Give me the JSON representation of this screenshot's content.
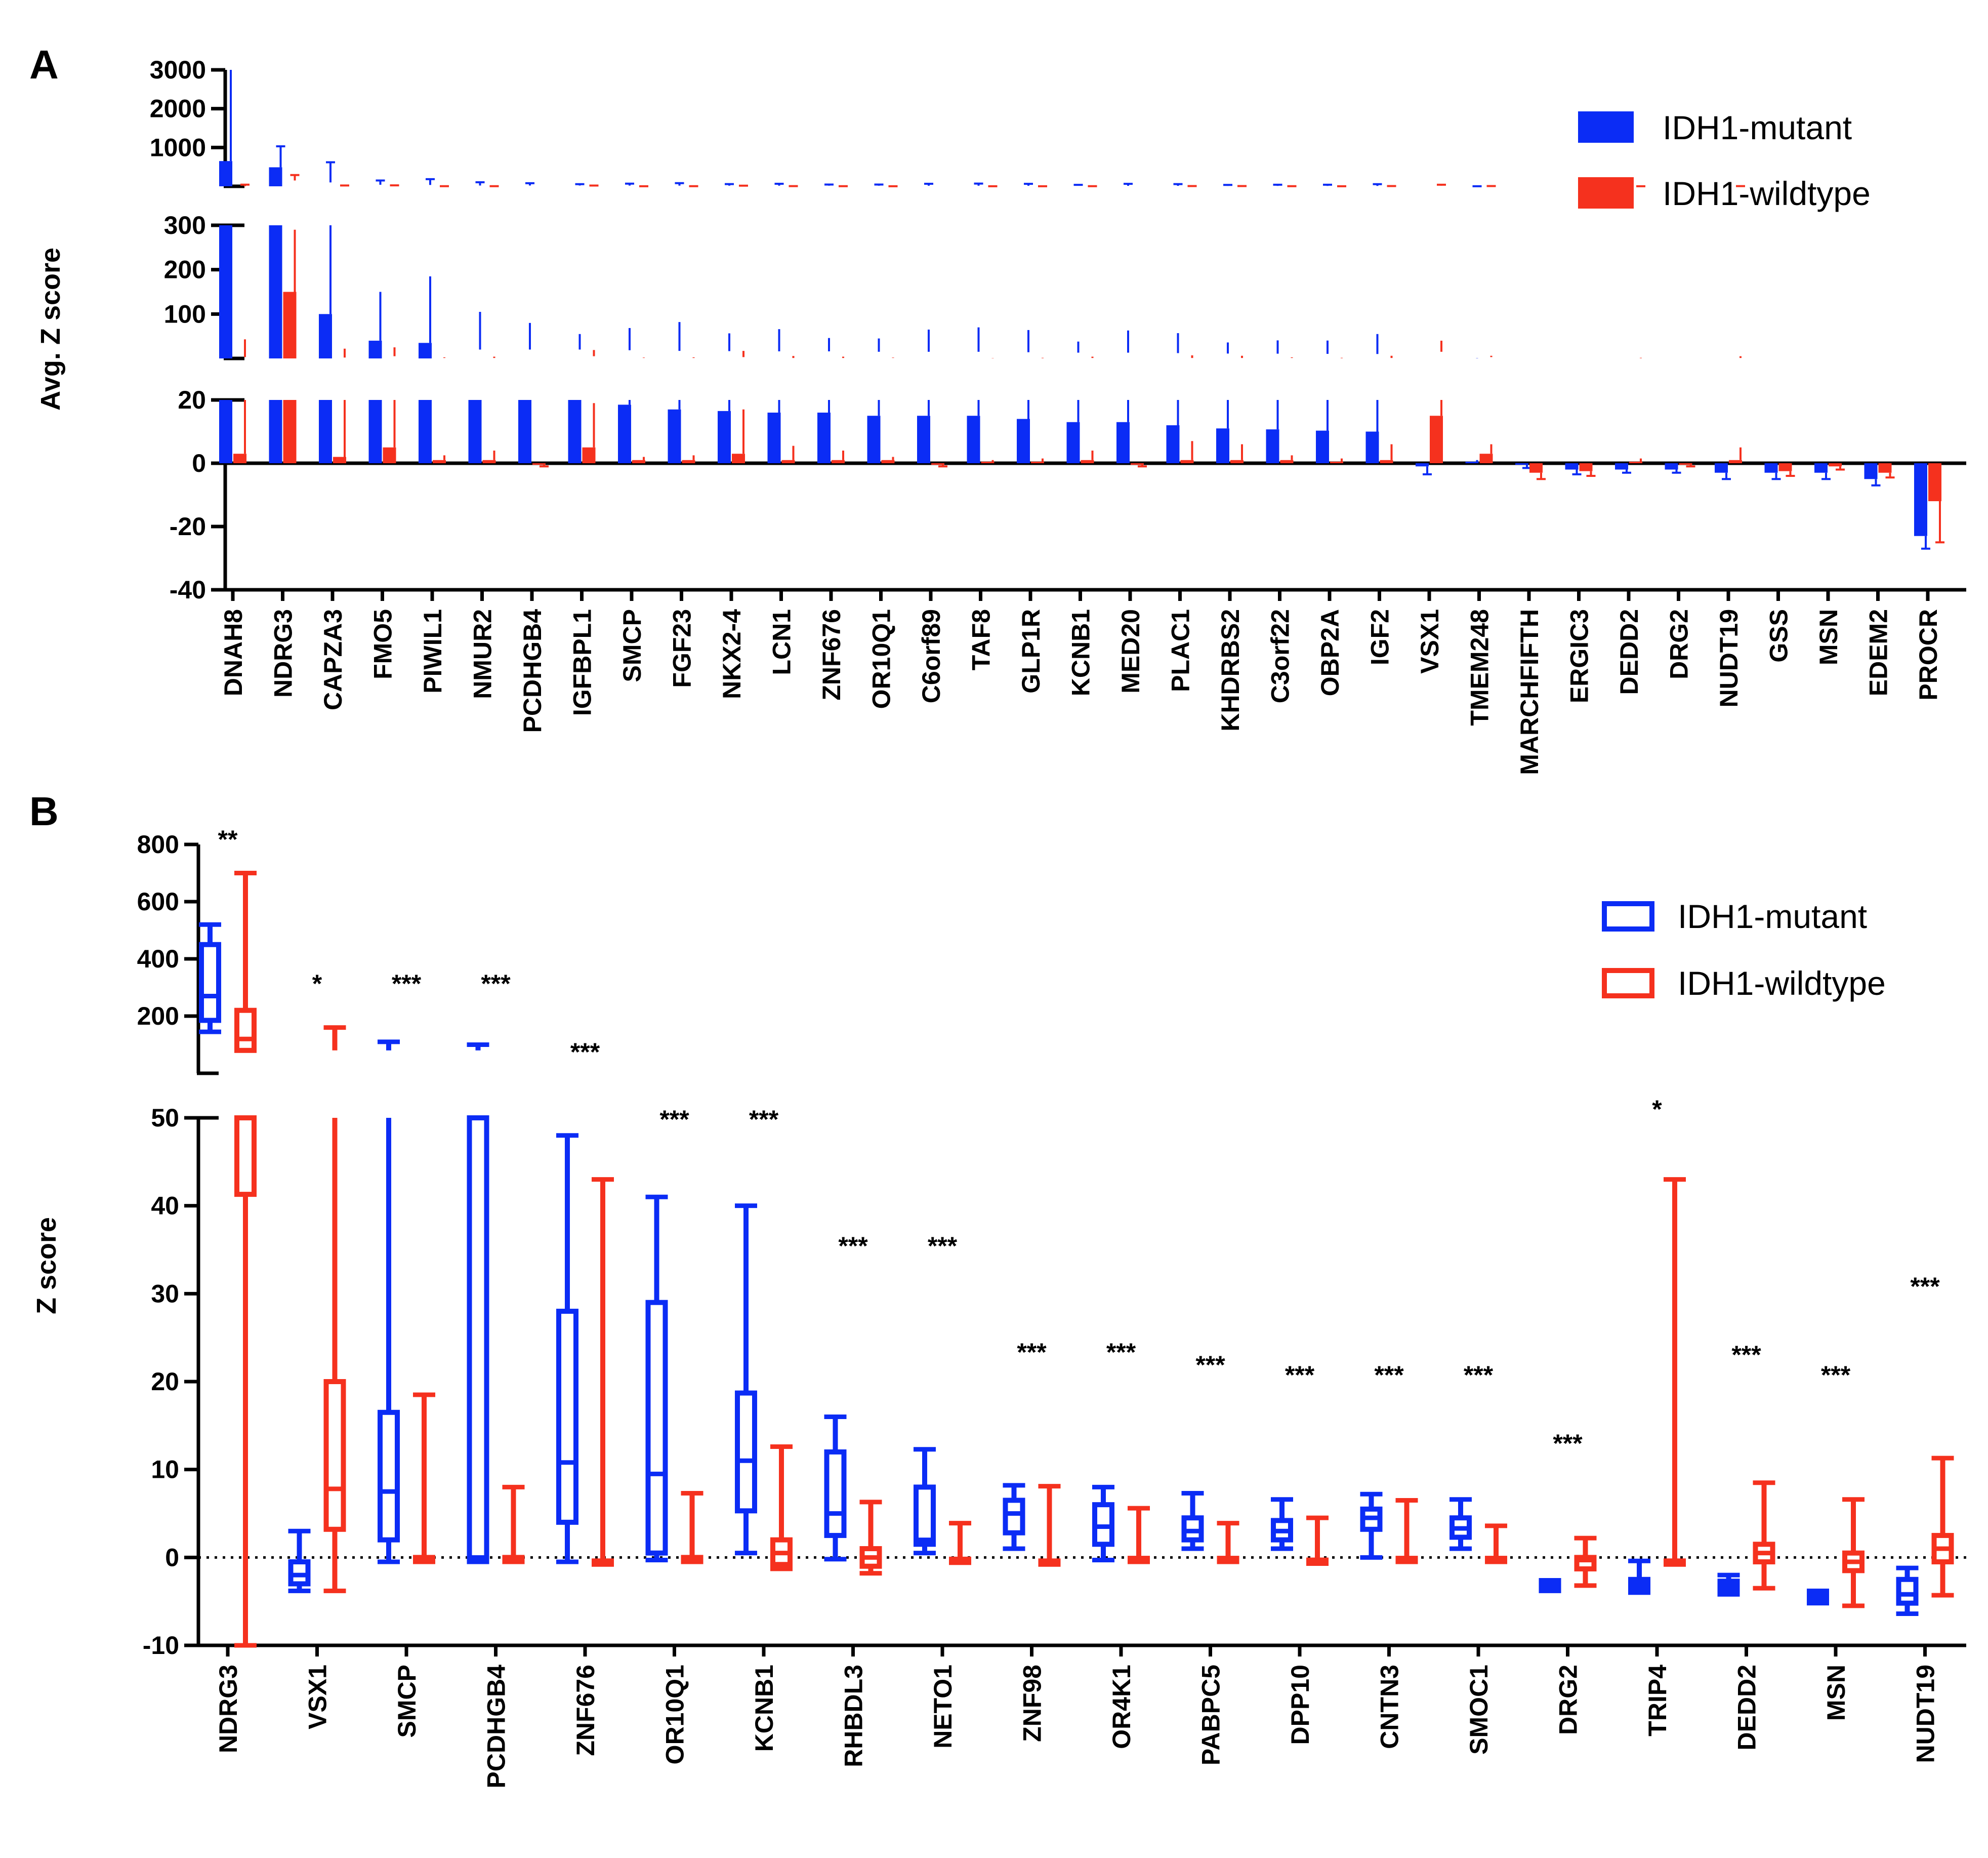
{
  "chart_data": [
    {
      "panel": "A",
      "type": "bar",
      "ylabel": "Avg. Z score",
      "y_axis_segments": [
        {
          "range": [
            0,
            3000
          ],
          "ticks": [
            1000,
            2000,
            3000
          ]
        },
        {
          "range": [
            0,
            300
          ],
          "ticks": [
            100,
            200,
            300
          ]
        },
        {
          "range": [
            -40,
            20
          ],
          "ticks": [
            -40,
            -20,
            0,
            20
          ]
        }
      ],
      "legend": {
        "position": "top-right",
        "entries": [
          "IDH1-mutant",
          "IDH1-wildtype"
        ]
      },
      "colors": {
        "mutant": "#0b2cf5",
        "wildtype": "#f5311e"
      },
      "categories": [
        "DNAH8",
        "NDRG3",
        "CAPZA3",
        "FMO5",
        "PIWIL1",
        "NMUR2",
        "PCDHGB4",
        "IGFBPL1",
        "SMCP",
        "FGF23",
        "NKX2-4",
        "LCN1",
        "ZNF676",
        "OR10Q1",
        "C6orf89",
        "TAF8",
        "GLP1R",
        "KCNB1",
        "MED20",
        "PLAC1",
        "KHDRBS2",
        "C3orf22",
        "OBP2A",
        "IGF2",
        "VSX1",
        "TMEM248",
        "MARCHFIFTH",
        "ERGIC3",
        "DEDD2",
        "DRG2",
        "NUDT19",
        "GSS",
        "MSN",
        "EDEM2",
        "PROCR"
      ],
      "series": [
        {
          "name": "IDH1-mutant",
          "values": [
            650,
            490,
            100,
            40,
            35,
            20,
            20,
            20,
            18.5,
            17,
            16.5,
            16,
            16,
            15,
            15,
            15,
            14,
            13,
            13,
            12,
            11,
            10.7,
            10.3,
            10,
            -1,
            0.5,
            -0.5,
            -2,
            -2,
            -2,
            -3,
            -3,
            -3,
            -5,
            -23
          ],
          "errors": [
            2700,
            540,
            520,
            110,
            150,
            85,
            60,
            35,
            50,
            65,
            40,
            50,
            30,
            30,
            50,
            55,
            50,
            25,
            50,
            45,
            25,
            30,
            30,
            45,
            2.5,
            0.5,
            1,
            1.5,
            1,
            1,
            2,
            2,
            2,
            2,
            4
          ]
        },
        {
          "name": "IDH1-wildtype",
          "values": [
            3,
            150,
            2,
            5,
            1,
            1,
            -0.5,
            5,
            1,
            1,
            3,
            1,
            1,
            1,
            -0.5,
            0.5,
            0.5,
            1,
            -0.5,
            1,
            1,
            1,
            0.5,
            1,
            15,
            3,
            -3,
            -2.5,
            0.5,
            -0.5,
            1,
            -2.5,
            -1,
            -3,
            -12
          ],
          "errors": [
            40,
            140,
            20,
            20,
            1.5,
            3,
            0.5,
            14,
            1,
            1.5,
            14,
            4.5,
            3,
            1,
            0.5,
            0.5,
            1,
            3,
            0.5,
            6,
            5,
            1.5,
            1,
            5,
            25,
            3,
            2,
            1.5,
            1,
            0.5,
            4,
            1.5,
            1,
            1.5,
            13
          ]
        }
      ]
    },
    {
      "panel": "B",
      "type": "box",
      "ylabel": "Z score",
      "y_axis_segments": [
        {
          "range": [
            0,
            800
          ],
          "ticks": [
            200,
            400,
            600,
            800
          ]
        },
        {
          "range": [
            -10,
            50
          ],
          "ticks": [
            -10,
            0,
            10,
            20,
            30,
            40,
            50
          ]
        }
      ],
      "legend": {
        "position": "top-right",
        "entries": [
          "IDH1-mutant",
          "IDH1-wildtype"
        ]
      },
      "colors": {
        "mutant": "#0b2cf5",
        "wildtype": "#f5311e"
      },
      "categories": [
        "NDRG3",
        "VSX1",
        "SMCP",
        "PCDHGB4",
        "ZNF676",
        "OR10Q1",
        "KCNB1",
        "RHBDL3",
        "NETO1",
        "ZNF98",
        "OR4K1",
        "PABPC5",
        "DPP10",
        "CNTN3",
        "SMOC1",
        "DRG2",
        "TRIP4",
        "DEDD2",
        "MSN",
        "NUDT19"
      ],
      "significance": [
        "**",
        "*",
        "***",
        "***",
        "***",
        "***",
        "***",
        "***",
        "***",
        "***",
        "***",
        "***",
        "***",
        "***",
        "***",
        "***",
        "*",
        "***",
        "***",
        "***"
      ],
      "series": [
        {
          "name": "IDH1-mutant",
          "boxes": [
            {
              "min": 145,
              "q1": 185,
              "median": 270,
              "q3": 450,
              "max": 520
            },
            {
              "min": -3.8,
              "q1": -3,
              "median": -2,
              "q3": -0.5,
              "max": 3
            },
            {
              "min": -0.5,
              "q1": 2,
              "median": 7.5,
              "q3": 16.5,
              "max": 110
            },
            {
              "min": -0.5,
              "q1": -0.2,
              "median": 0,
              "q3": 70,
              "max": 100
            },
            {
              "min": -0.5,
              "q1": 4,
              "median": 10.8,
              "q3": 28,
              "max": 48
            },
            {
              "min": -0.3,
              "q1": 0.5,
              "median": 9.5,
              "q3": 29,
              "max": 41
            },
            {
              "min": 0.5,
              "q1": 5.3,
              "median": 11,
              "q3": 18.7,
              "max": 40
            },
            {
              "min": -0.2,
              "q1": 2.5,
              "median": 5,
              "q3": 12,
              "max": 16
            },
            {
              "min": 0.5,
              "q1": 1.5,
              "median": 2,
              "q3": 8,
              "max": 12.3
            },
            {
              "min": 1,
              "q1": 2.8,
              "median": 5,
              "q3": 6.5,
              "max": 8.2
            },
            {
              "min": -0.3,
              "q1": 1.5,
              "median": 3.5,
              "q3": 6,
              "max": 8
            },
            {
              "min": 1,
              "q1": 2,
              "median": 3,
              "q3": 4.5,
              "max": 7.3
            },
            {
              "min": 1,
              "q1": 2,
              "median": 3,
              "q3": 4.2,
              "max": 6.6
            },
            {
              "min": 0,
              "q1": 3.2,
              "median": 4.5,
              "q3": 5.5,
              "max": 7.2
            },
            {
              "min": 1,
              "q1": 2.3,
              "median": 3.3,
              "q3": 4.5,
              "max": 6.6
            },
            {
              "min": -3.8,
              "q1": -3.5,
              "median": -3.2,
              "q3": -3,
              "max": -2.6
            },
            {
              "min": -4,
              "q1": -3.5,
              "median": -3,
              "q3": -2.5,
              "max": -0.4
            },
            {
              "min": -4.2,
              "q1": -3.7,
              "median": -3.2,
              "q3": -2.7,
              "max": -2
            },
            {
              "min": -5.2,
              "q1": -5,
              "median": -4.7,
              "q3": -4.3,
              "max": -3.8
            },
            {
              "min": -6.4,
              "q1": -5.2,
              "median": -4.2,
              "q3": -2.5,
              "max": -1.2
            }
          ]
        },
        {
          "name": "IDH1-wildtype",
          "boxes": [
            {
              "min": -10,
              "q1": 41.3,
              "median": 120,
              "q3": 220,
              "max": 700
            },
            {
              "min": -3.8,
              "q1": 3.2,
              "median": 7.8,
              "q3": 20,
              "max": 160
            },
            {
              "min": -0.5,
              "q1": -0.3,
              "median": -0.2,
              "q3": 0,
              "max": 18.5
            },
            {
              "min": -0.5,
              "q1": -0.3,
              "median": -0.2,
              "q3": 0,
              "max": 8
            },
            {
              "min": -0.8,
              "q1": -0.6,
              "median": -0.5,
              "q3": -0.4,
              "max": 43
            },
            {
              "min": -0.5,
              "q1": -0.3,
              "median": -0.2,
              "q3": 0,
              "max": 7.3
            },
            {
              "min": -1.3,
              "q1": -0.8,
              "median": 0.5,
              "q3": 2,
              "max": 12.6
            },
            {
              "min": -1.8,
              "q1": -1,
              "median": 0,
              "q3": 1,
              "max": 6.3
            },
            {
              "min": -0.6,
              "q1": -0.4,
              "median": -0.3,
              "q3": -0.2,
              "max": 3.9
            },
            {
              "min": -0.8,
              "q1": -0.6,
              "median": -0.5,
              "q3": -0.4,
              "max": 8.1
            },
            {
              "min": -0.5,
              "q1": -0.3,
              "median": -0.2,
              "q3": -0.1,
              "max": 5.6
            },
            {
              "min": -0.5,
              "q1": -0.3,
              "median": -0.2,
              "q3": -0.1,
              "max": 3.9
            },
            {
              "min": -0.7,
              "q1": -0.5,
              "median": -0.4,
              "q3": -0.3,
              "max": 4.5
            },
            {
              "min": -0.5,
              "q1": -0.3,
              "median": -0.2,
              "q3": -0.1,
              "max": 6.5
            },
            {
              "min": -0.5,
              "q1": -0.3,
              "median": -0.2,
              "q3": -0.1,
              "max": 3.6
            },
            {
              "min": -3.2,
              "q1": -1.3,
              "median": -0.3,
              "q3": 0,
              "max": 2.2
            },
            {
              "min": -0.8,
              "q1": -0.6,
              "median": -0.5,
              "q3": -0.4,
              "max": 43
            },
            {
              "min": -3.5,
              "q1": -0.5,
              "median": 0.5,
              "q3": 1.5,
              "max": 8.5
            },
            {
              "min": -5.5,
              "q1": -1.5,
              "median": -0.5,
              "q3": 0.5,
              "max": 6.6
            },
            {
              "min": -4.3,
              "q1": -0.5,
              "median": 1,
              "q3": 2.5,
              "max": 11.3
            }
          ]
        }
      ]
    }
  ]
}
